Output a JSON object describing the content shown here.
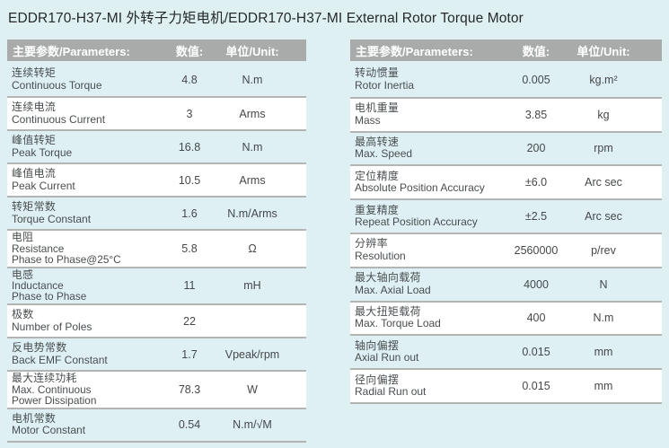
{
  "page": {
    "title": "EDDR170-H37-MI 外转子力矩电机/EDDR170-H37-MI  External Rotor Torque Motor"
  },
  "colors": {
    "page_background": "#def0f2",
    "row_alternate": "#def0f4",
    "table_header_background": "#a9abab",
    "table_header_text": "#ffffff",
    "separator": "#b3b5b5",
    "body_text": "#4a4e50"
  },
  "tables": [
    {
      "name": "left-spec-table",
      "header": {
        "parameters": "主要参数/Parameters:",
        "value": "数值:",
        "unit": "单位/Unit:"
      },
      "rows": [
        {
          "lines": [
            "连续转矩",
            "Continuous Torque"
          ],
          "value": "4.8",
          "unit": "N.m"
        },
        {
          "lines": [
            "连续电流",
            "Continuous Current"
          ],
          "value": "3",
          "unit": "Arms"
        },
        {
          "lines": [
            "峰值转矩",
            "Peak Torque"
          ],
          "value": "16.8",
          "unit": "N.m"
        },
        {
          "lines": [
            "峰值电流",
            "Peak Current"
          ],
          "value": "10.5",
          "unit": "Arms"
        },
        {
          "lines": [
            "转矩常数",
            "Torque Constant"
          ],
          "value": "1.6",
          "unit": "N.m/Arms"
        },
        {
          "lines": [
            "电阻",
            "Resistance",
            "Phase to Phase@25°C"
          ],
          "value": "5.8",
          "unit": "Ω"
        },
        {
          "lines": [
            "电感",
            "Inductance",
            "Phase to Phase"
          ],
          "value": "11",
          "unit": "mH"
        },
        {
          "lines": [
            "极数",
            "Number of Poles"
          ],
          "value": "22",
          "unit": ""
        },
        {
          "lines": [
            "反电势常数",
            "Back EMF Constant"
          ],
          "value": "1.7",
          "unit": "Vpeak/rpm"
        },
        {
          "lines": [
            "最大连续功耗",
            "Max. Continuous",
            "Power Dissipation"
          ],
          "value": "78.3",
          "unit": "W"
        },
        {
          "lines": [
            "电机常数",
            "Motor Constant"
          ],
          "value": "0.54",
          "unit": "N.m/√M"
        }
      ]
    },
    {
      "name": "right-spec-table",
      "header": {
        "parameters": "主要参数/Parameters:",
        "value": "数值:",
        "unit": "单位/Unit:"
      },
      "rows": [
        {
          "lines": [
            "转动惯量",
            "Rotor Inertia"
          ],
          "value": "0.005",
          "unit": "kg.m²"
        },
        {
          "lines": [
            "电机重量",
            "Mass"
          ],
          "value": "3.85",
          "unit": "kg"
        },
        {
          "lines": [
            "最高转速",
            "Max. Speed"
          ],
          "value": "200",
          "unit": "rpm"
        },
        {
          "lines": [
            "定位精度",
            "Absolute Position Accuracy"
          ],
          "value": "±6.0",
          "unit": "Arc sec"
        },
        {
          "lines": [
            "重复精度",
            "Repeat Position Accuracy"
          ],
          "value": "±2.5",
          "unit": "Arc sec"
        },
        {
          "lines": [
            "分辨率",
            "Resolution"
          ],
          "value": "2560000",
          "unit": "p/rev"
        },
        {
          "lines": [
            "最大轴向载荷",
            "Max. Axial Load"
          ],
          "value": "4000",
          "unit": "N"
        },
        {
          "lines": [
            "最大扭矩载荷",
            "Max. Torque Load"
          ],
          "value": "400",
          "unit": "N.m"
        },
        {
          "lines": [
            "轴向偏摆",
            "Axial Run out"
          ],
          "value": "0.015",
          "unit": "mm"
        },
        {
          "lines": [
            "径向偏摆",
            "Radial Run out"
          ],
          "value": "0.015",
          "unit": "mm"
        }
      ]
    }
  ]
}
